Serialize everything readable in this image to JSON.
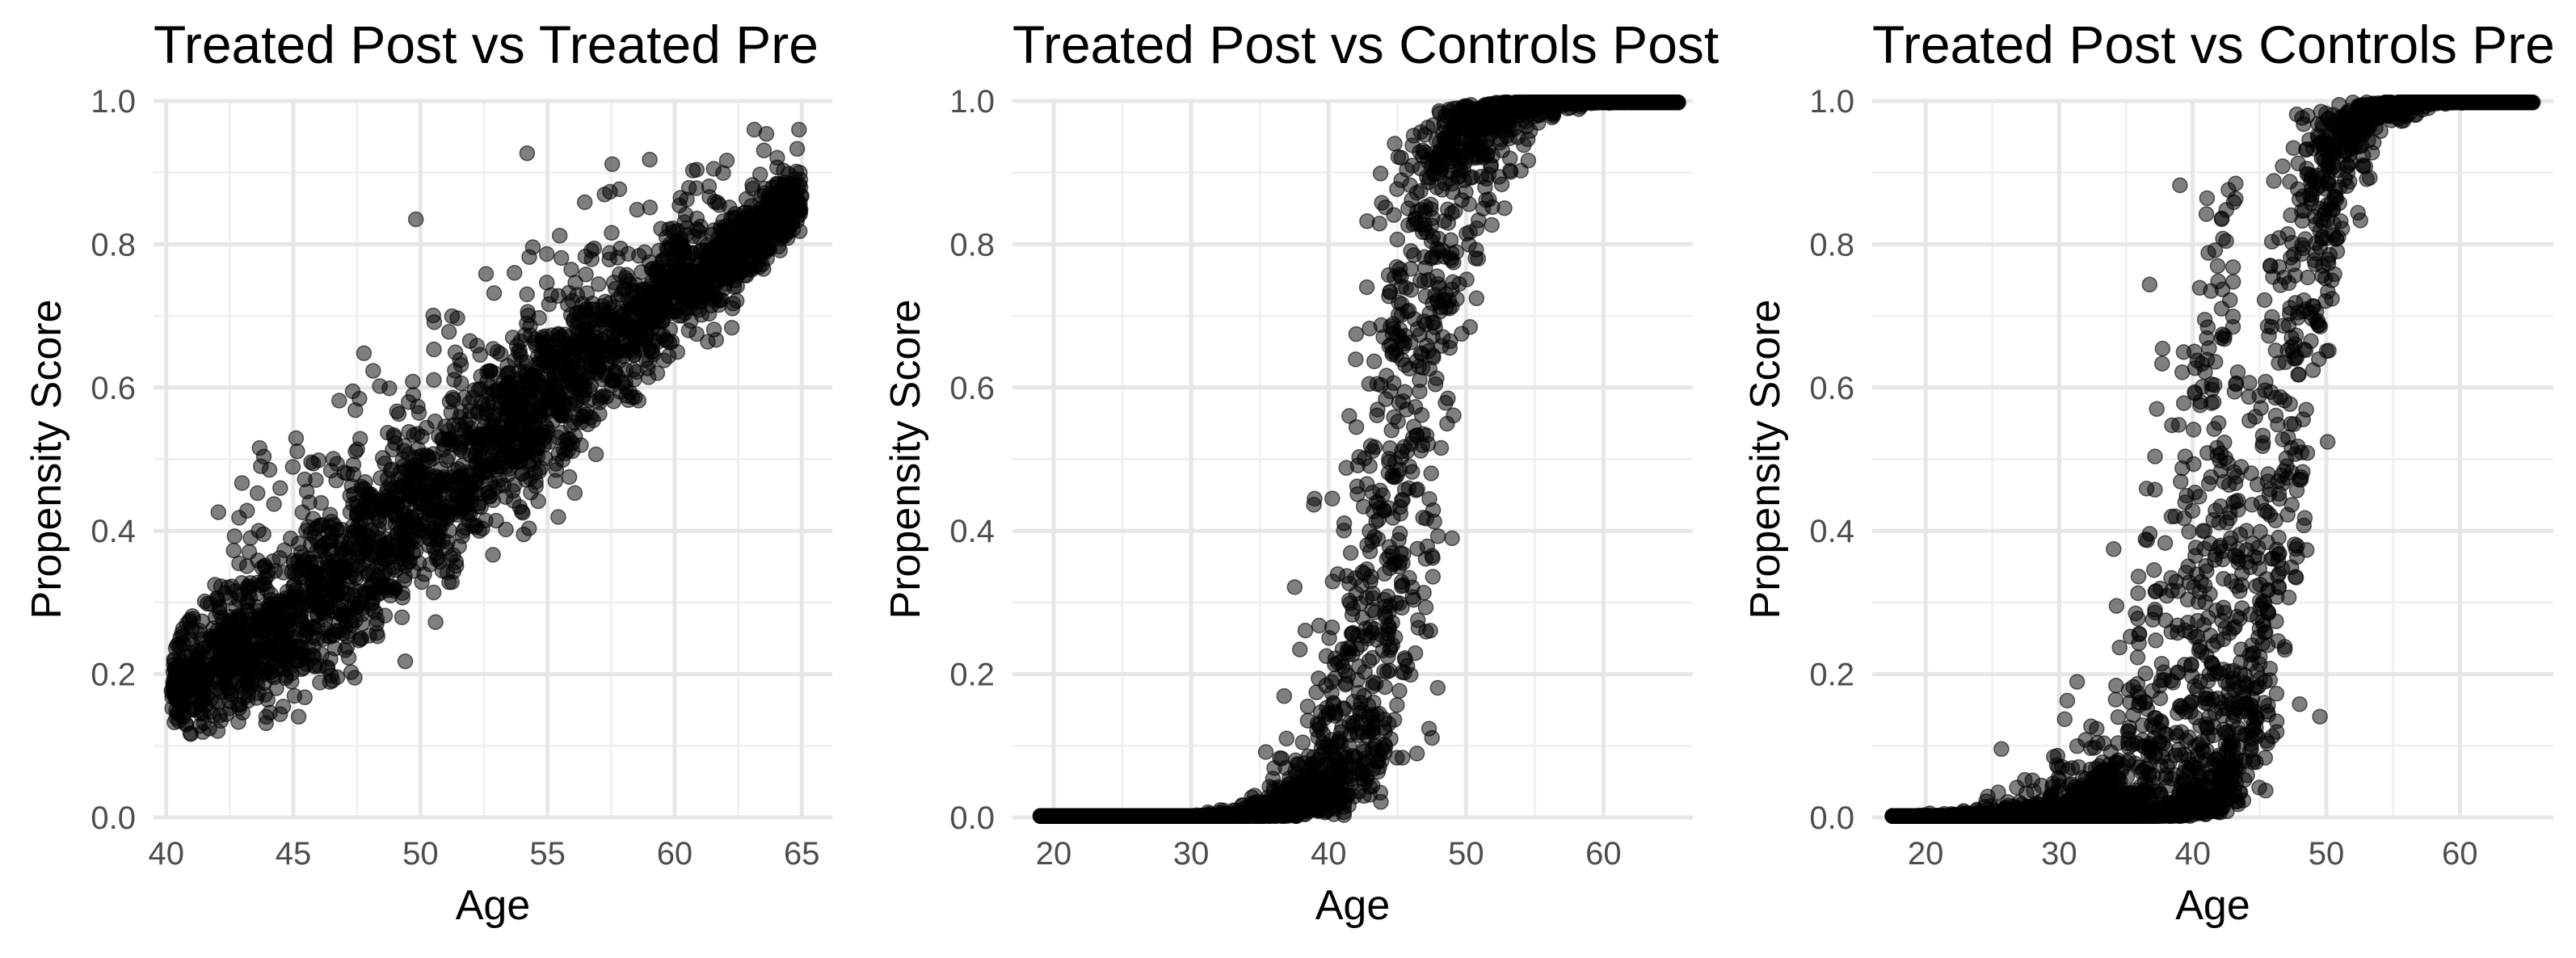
{
  "chart_data": [
    {
      "type": "scatter",
      "title": "Treated Post vs Treated Pre",
      "xlabel": "Age",
      "ylabel": "Propensity Score",
      "xlim": [
        39.5,
        66.2
      ],
      "ylim": [
        0,
        1
      ],
      "xticks": [
        40,
        45,
        50,
        55,
        60,
        65
      ],
      "yticks": [
        0.0,
        0.2,
        0.4,
        0.6,
        0.8,
        1.0
      ],
      "xtick_labels": [
        "40",
        "45",
        "50",
        "55",
        "60",
        "65"
      ],
      "ytick_labels": [
        "0.0",
        "0.2",
        "0.4",
        "0.6",
        "0.8",
        "1.0"
      ],
      "grid": true,
      "point_color": "#000000",
      "point_opacity": 0.5,
      "series": [
        {
          "pattern": "linear-band",
          "x_range": [
            40.2,
            65.0
          ],
          "y_center": [
            [
              40,
              0.17
            ],
            [
              45,
              0.28
            ],
            [
              50,
              0.43
            ],
            [
              55,
              0.59
            ],
            [
              60,
              0.73
            ],
            [
              65,
              0.86
            ]
          ],
          "spread": [
            [
              40,
              0.06
            ],
            [
              45,
              0.13
            ],
            [
              50,
              0.15
            ],
            [
              55,
              0.13
            ],
            [
              60,
              0.09
            ],
            [
              65,
              0.05
            ]
          ],
          "n_points": 2800
        }
      ]
    },
    {
      "type": "scatter",
      "title": "Treated Post vs Controls Post",
      "xlabel": "Age",
      "ylabel": "Propensity Score",
      "xlim": [
        17,
        66.5
      ],
      "ylim": [
        0,
        1
      ],
      "xticks": [
        20,
        30,
        40,
        50,
        60
      ],
      "yticks": [
        0.0,
        0.2,
        0.4,
        0.6,
        0.8,
        1.0
      ],
      "xtick_labels": [
        "20",
        "30",
        "40",
        "50",
        "60"
      ],
      "ytick_labels": [
        "0.0",
        "0.2",
        "0.4",
        "0.6",
        "0.8",
        "1.0"
      ],
      "grid": true,
      "point_color": "#000000",
      "point_opacity": 0.5,
      "series": [
        {
          "pattern": "logistic-band",
          "x_range": [
            19.0,
            65.5
          ],
          "midpoint": 45.0,
          "midpoint_jitter": 2.0,
          "slope": 0.55,
          "n_points": 3000
        }
      ]
    },
    {
      "type": "scatter",
      "title": "Treated Post vs Controls Pre",
      "xlabel": "Age",
      "ylabel": "Propensity Score",
      "xlim": [
        16,
        67
      ],
      "ylim": [
        0,
        1
      ],
      "xticks": [
        20,
        30,
        40,
        50,
        60
      ],
      "yticks": [
        0.0,
        0.2,
        0.4,
        0.6,
        0.8,
        1.0
      ],
      "xtick_labels": [
        "20",
        "30",
        "40",
        "50",
        "60"
      ],
      "ytick_labels": [
        "0.0",
        "0.2",
        "0.4",
        "0.6",
        "0.8",
        "1.0"
      ],
      "grid": true,
      "point_color": "#000000",
      "point_opacity": 0.5,
      "series": [
        {
          "pattern": "logistic-band",
          "x_range": [
            17.5,
            65.5
          ],
          "midpoint": 46.5,
          "midpoint_jitter": 1.6,
          "slope": 0.6,
          "n_points": 2600
        },
        {
          "pattern": "logistic-band",
          "x_range": [
            17.5,
            43.5
          ],
          "midpoint": 42.5,
          "midpoint_jitter": 3.0,
          "slope": 0.35,
          "n_points": 1100
        }
      ]
    }
  ]
}
